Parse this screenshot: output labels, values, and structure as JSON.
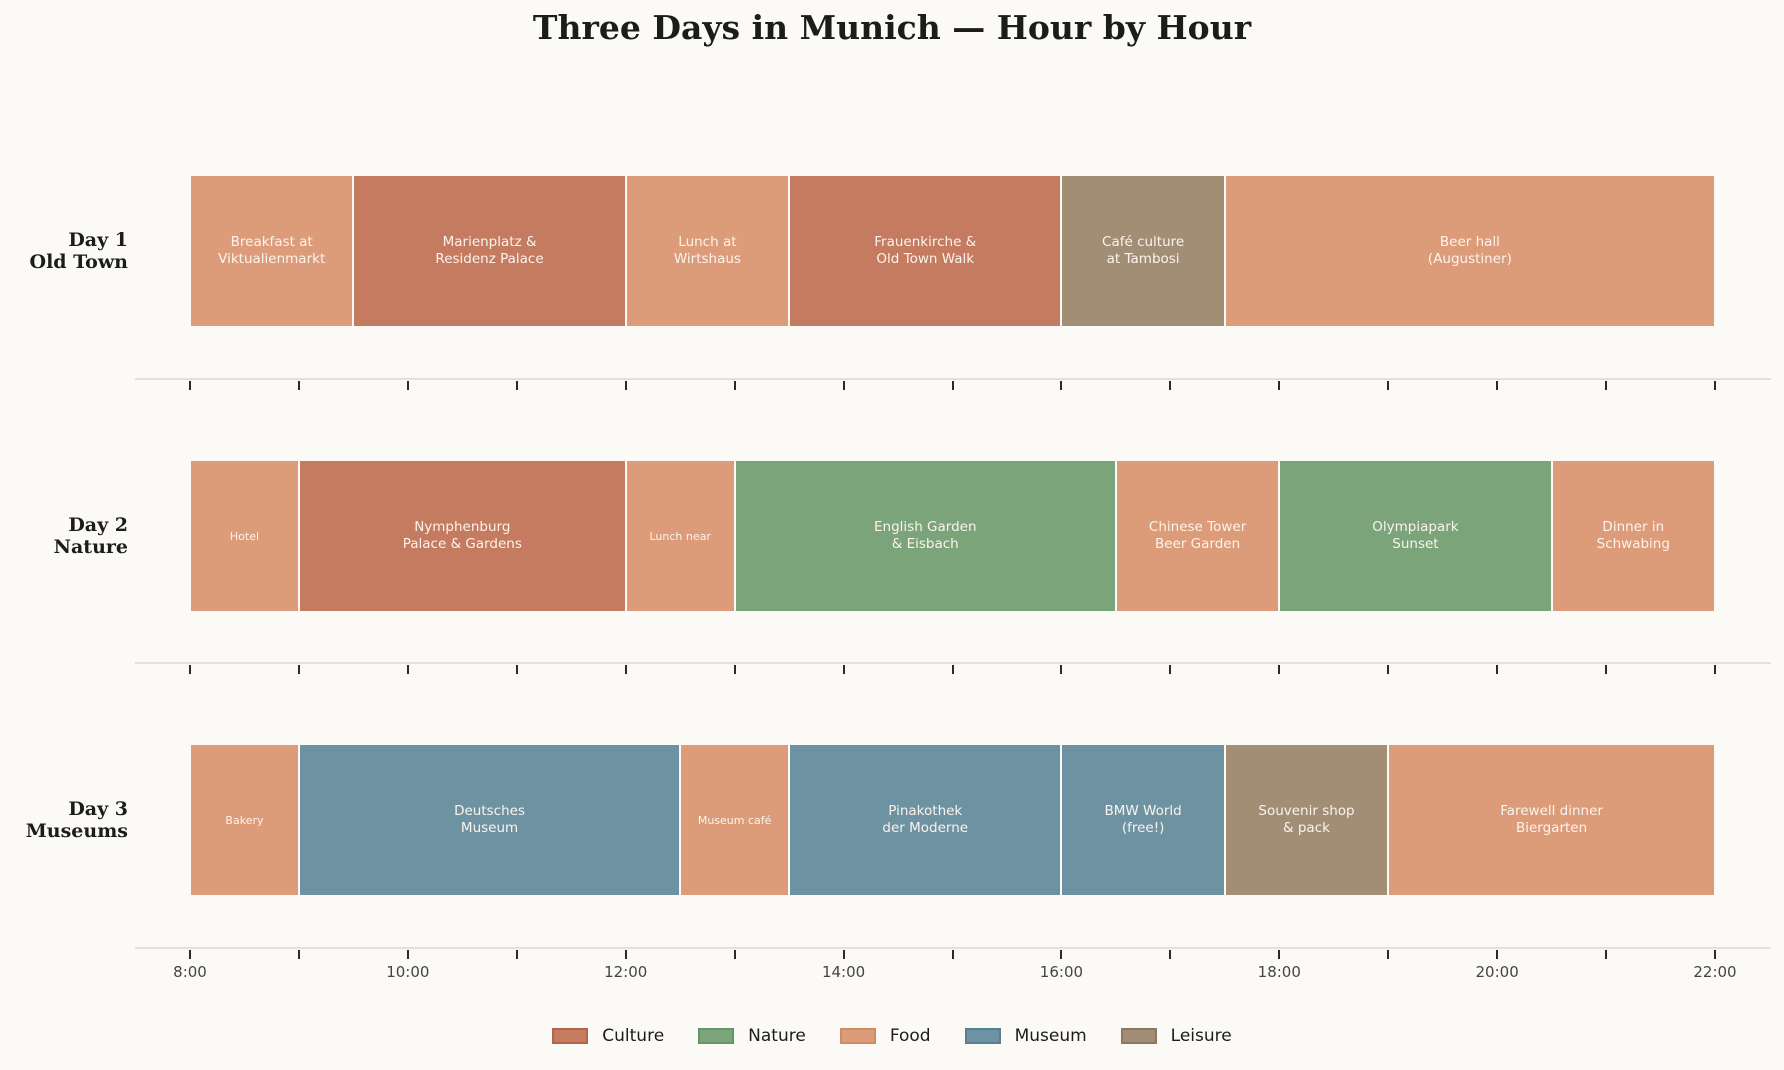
{
  "title": "Three Days in Munich — Hour by Hour",
  "colors": {
    "Culture": "#c47b5f",
    "Nature": "#7ba47b",
    "Food": "#dc9c7a",
    "Museum": "#6d93a3",
    "Leisure": "#a28e75",
    "Culture_edge": "#b5644a",
    "Nature_edge": "#649564",
    "Food_edge": "#d08a64",
    "Museum_edge": "#557f92",
    "Leisure_edge": "#8c785e"
  },
  "legend": [
    {
      "label": "Culture"
    },
    {
      "label": "Nature"
    },
    {
      "label": "Food"
    },
    {
      "label": "Museum"
    },
    {
      "label": "Leisure"
    }
  ],
  "x_ticks": [
    "8:00",
    "10:00",
    "12:00",
    "14:00",
    "16:00",
    "18:00",
    "20:00",
    "22:00"
  ],
  "chart_data": {
    "type": "gantt",
    "title": "Three Days in Munich — Hour by Hour",
    "xlabel": "",
    "ylabel": "",
    "xlim": [
      7.5,
      22.5
    ],
    "x_tick_hours": [
      8,
      10,
      12,
      14,
      16,
      18,
      20,
      22
    ],
    "x_minor_tick_hours": [
      9,
      11,
      13,
      15,
      17,
      19,
      21
    ],
    "legend_position": "bottom-center",
    "grid": false,
    "categories": [
      "Day 1\nOld Town",
      "Day 2\nNature",
      "Day 3\nMuseums"
    ],
    "rows": [
      {
        "label_line1": "Day 1",
        "label_line2": "Old Town",
        "activities": [
          {
            "label": "Breakfast at\nViktualienmarkt",
            "start": 8.0,
            "end": 9.5,
            "category": "Food"
          },
          {
            "label": "Marienplatz &\nResidenz Palace",
            "start": 9.5,
            "end": 12.0,
            "category": "Culture"
          },
          {
            "label": "Lunch at\nWirtshaus",
            "start": 12.0,
            "end": 13.5,
            "category": "Food"
          },
          {
            "label": "Frauenkirche &\nOld Town Walk",
            "start": 13.5,
            "end": 16.0,
            "category": "Culture"
          },
          {
            "label": "Café culture\nat Tambosi",
            "start": 16.0,
            "end": 17.5,
            "category": "Leisure"
          },
          {
            "label": "Beer hall\n(Augustiner)",
            "start": 17.5,
            "end": 22.0,
            "category": "Food"
          }
        ]
      },
      {
        "label_line1": "Day 2",
        "label_line2": "Nature",
        "activities": [
          {
            "label": "Hotel",
            "start": 8.0,
            "end": 9.0,
            "category": "Food",
            "small": true
          },
          {
            "label": "Nymphenburg\nPalace & Gardens",
            "start": 9.0,
            "end": 12.0,
            "category": "Culture"
          },
          {
            "label": "Lunch near",
            "start": 12.0,
            "end": 13.0,
            "category": "Food",
            "small": true
          },
          {
            "label": "English Garden\n& Eisbach",
            "start": 13.0,
            "end": 16.5,
            "category": "Nature"
          },
          {
            "label": "Chinese Tower\nBeer Garden",
            "start": 16.5,
            "end": 18.0,
            "category": "Food"
          },
          {
            "label": "Olympiapark\nSunset",
            "start": 18.0,
            "end": 20.5,
            "category": "Nature"
          },
          {
            "label": "Dinner in\nSchwabing",
            "start": 20.5,
            "end": 22.0,
            "category": "Food"
          }
        ]
      },
      {
        "label_line1": "Day 3",
        "label_line2": "Museums",
        "activities": [
          {
            "label": "Bakery",
            "start": 8.0,
            "end": 9.0,
            "category": "Food",
            "small": true
          },
          {
            "label": "Deutsches\nMuseum",
            "start": 9.0,
            "end": 12.5,
            "category": "Museum"
          },
          {
            "label": "Museum café",
            "start": 12.5,
            "end": 13.5,
            "category": "Food",
            "small": true
          },
          {
            "label": "Pinakothek\nder Moderne",
            "start": 13.5,
            "end": 16.0,
            "category": "Museum"
          },
          {
            "label": "BMW World\n(free!)",
            "start": 16.0,
            "end": 17.5,
            "category": "Museum"
          },
          {
            "label": "Souvenir shop\n& pack",
            "start": 17.5,
            "end": 19.0,
            "category": "Leisure"
          },
          {
            "label": "Farewell dinner\nBiergarten",
            "start": 19.0,
            "end": 22.0,
            "category": "Food"
          }
        ]
      }
    ]
  }
}
